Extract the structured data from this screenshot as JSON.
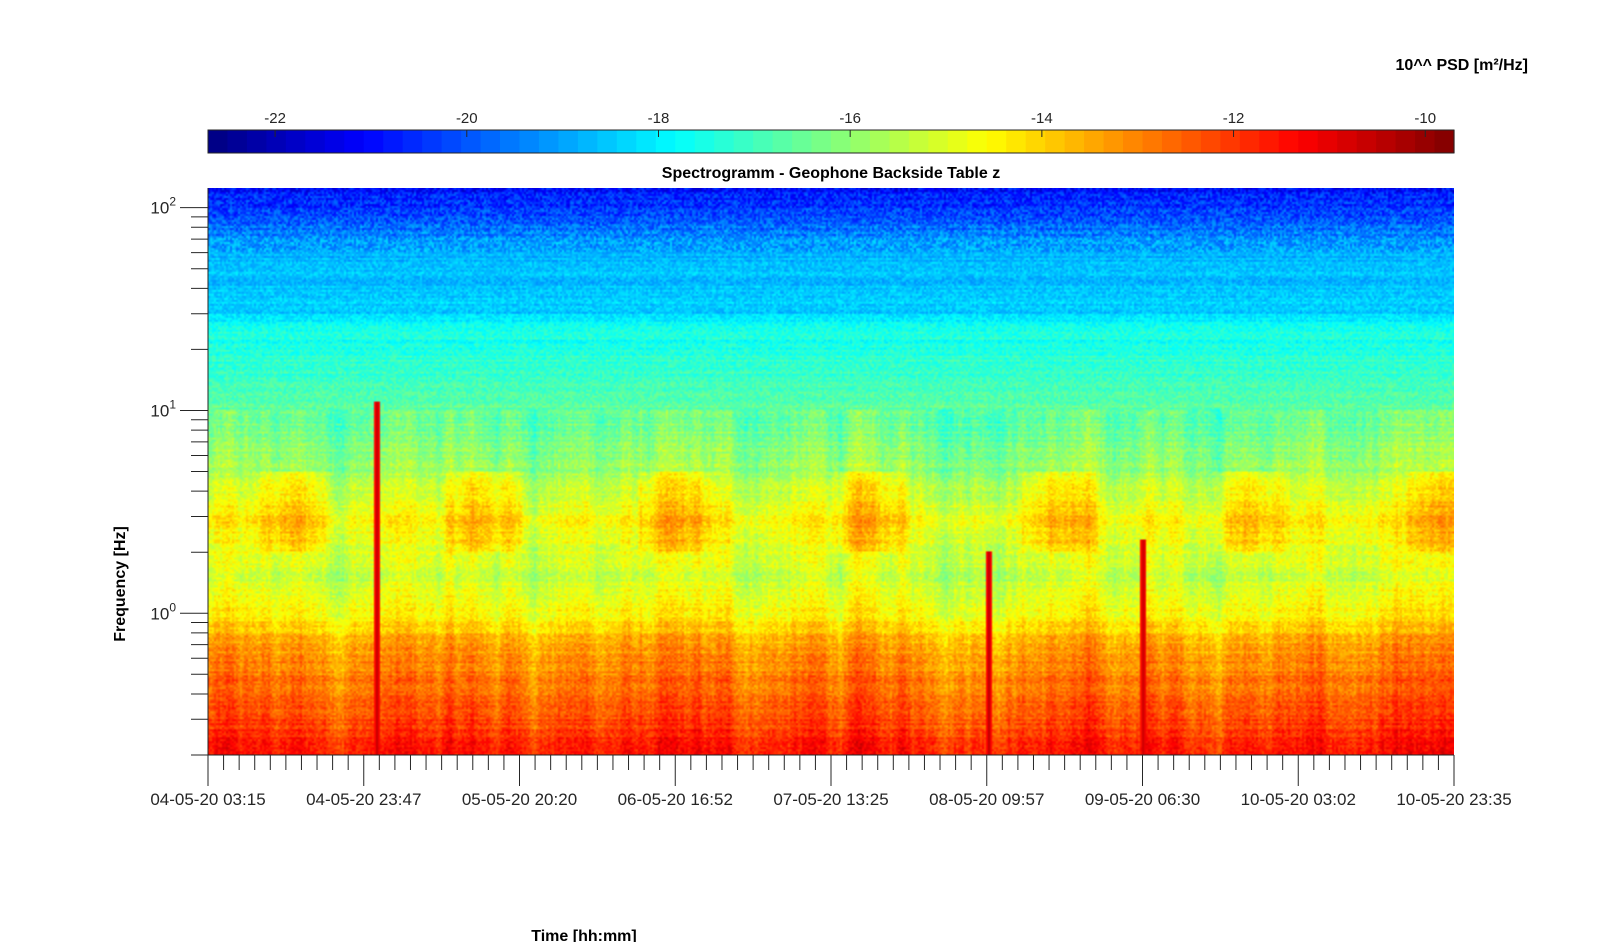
{
  "chart_data": {
    "type": "heatmap",
    "title": "Spectrogramm - Geophone Backside Table z",
    "xlabel": "Time [hh:mm]",
    "ylabel": "Frequency [Hz]",
    "y_scale": "log",
    "ylim": [
      0.2,
      125
    ],
    "x_tick_labels": [
      "04-05-20 03:15",
      "04-05-20 23:47",
      "05-05-20 20:20",
      "06-05-20 16:52",
      "07-05-20 13:25",
      "08-05-20 09:57",
      "09-05-20 06:30",
      "10-05-20 03:02",
      "10-05-20 23:35"
    ],
    "y_ticks": [
      {
        "value": 1,
        "base": "10",
        "exp": "0"
      },
      {
        "value": 10,
        "base": "10",
        "exp": "1"
      },
      {
        "value": 100,
        "base": "10",
        "exp": "2"
      }
    ],
    "colorbar": {
      "label": "10^^ PSD [m²/Hz]",
      "colormap": "jet",
      "range": [
        -22.7,
        -9.7
      ],
      "ticks": [
        -22,
        -20,
        -18,
        -16,
        -14,
        -12,
        -10
      ],
      "tick_labels": [
        "-22",
        "-20",
        "-18",
        "-16",
        "-14",
        "-12",
        "-10"
      ]
    },
    "psd_profile_by_frequency": [
      {
        "f_hz": 0.2,
        "log_psd": -11.7
      },
      {
        "f_hz": 0.3,
        "log_psd": -12.2
      },
      {
        "f_hz": 0.5,
        "log_psd": -12.9
      },
      {
        "f_hz": 0.7,
        "log_psd": -13.4
      },
      {
        "f_hz": 0.9,
        "log_psd": -14.3
      },
      {
        "f_hz": 1.5,
        "log_psd": -15.3
      },
      {
        "f_hz": 3,
        "log_psd": -14.5
      },
      {
        "f_hz": 5,
        "log_psd": -15.8
      },
      {
        "f_hz": 10,
        "log_psd": -16.6
      },
      {
        "f_hz": 25,
        "log_psd": -17.6
      },
      {
        "f_hz": 30,
        "log_psd": -18.4
      },
      {
        "f_hz": 60,
        "log_psd": -18.8
      },
      {
        "f_hz": 125,
        "log_psd": -21.0
      }
    ],
    "transient_events": [
      {
        "time": "04-05-20 ~22:30",
        "f_max_hz": 11,
        "log_psd": -10.5
      },
      {
        "time": "08-05-20 ~10:30",
        "f_max_hz": 2,
        "log_psd": -10.5
      },
      {
        "time": "09-05-20 ~07:00",
        "f_max_hz": 2.3,
        "log_psd": -10.5
      }
    ]
  }
}
